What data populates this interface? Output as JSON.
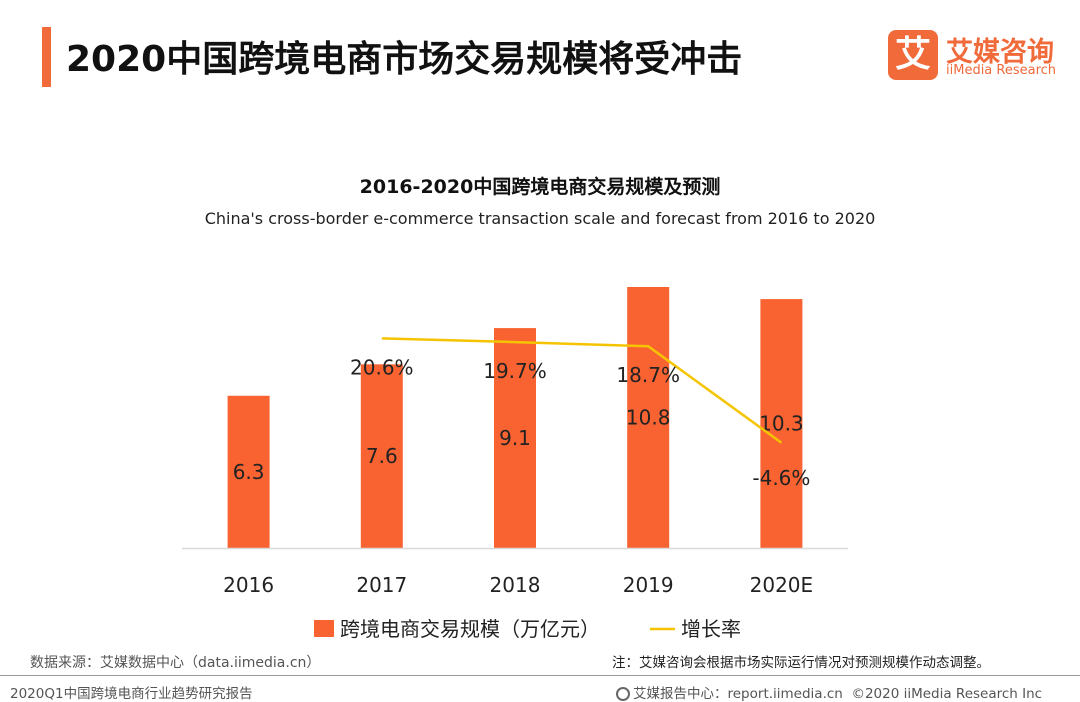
{
  "header": {
    "title": "2020中国跨境电商市场交易规模将受冲击",
    "logo_mark": "艾",
    "logo_cn": "艾媒咨询",
    "logo_en": "iiMedia Research",
    "accent_color": "#f06a3a"
  },
  "chart_data": {
    "type": "bar",
    "title": "2016-2020中国跨境电商交易规模及预测",
    "subtitle": "China's cross-border e-commerce transaction scale and forecast from 2016 to 2020",
    "categories": [
      "2016",
      "2017",
      "2018",
      "2019",
      "2020E"
    ],
    "series": [
      {
        "name": "跨境电商交易规模（万亿元）",
        "type": "bar",
        "color": "#f96332",
        "values": [
          6.3,
          7.6,
          9.1,
          10.8,
          10.3
        ],
        "labels": [
          "6.3",
          "7.6",
          "9.1",
          "10.8",
          "10.3"
        ]
      },
      {
        "name": "增长率",
        "type": "line",
        "color": "#f5c400",
        "values": [
          null,
          20.6,
          19.7,
          18.7,
          -4.6
        ],
        "labels": [
          "",
          "20.6%",
          "19.7%",
          "18.7%",
          "-4.6%"
        ]
      }
    ],
    "ylim": [
      0,
      12
    ],
    "growth_ylim": [
      -30,
      40
    ],
    "grid": false,
    "legend_position": "bottom"
  },
  "footer": {
    "source": "数据来源：艾媒数据中心（data.iimedia.cn）",
    "note": "注：艾媒咨询会根据市场实际运行情况对预测规模作动态调整。",
    "report": "2020Q1中国跨境电商行业趋势研究报告",
    "report_center": "艾媒报告中心：report.iimedia.cn",
    "copyright": "©2020  iiMedia Research  Inc"
  }
}
